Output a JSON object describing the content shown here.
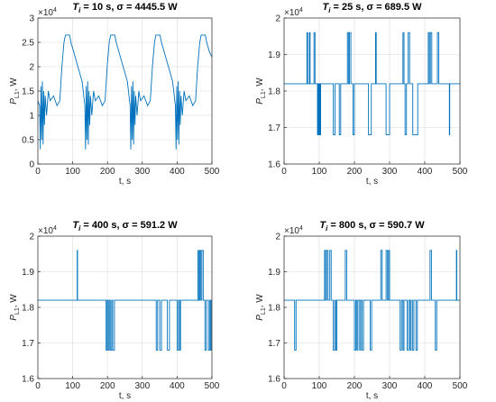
{
  "chart_data": [
    {
      "type": "line",
      "title": {
        "symbol": "T",
        "subscript": "i",
        "rest": " = 10 s,  σ = 4445.5 W"
      },
      "xlabel": "t, s",
      "ylabel": {
        "symbol": "P",
        "subscript": "L1",
        "unit": ", W"
      },
      "exponent_label": {
        "base": "×10",
        "power": "4"
      },
      "xlim": [
        0,
        500
      ],
      "xticks": [
        0,
        100,
        200,
        300,
        400,
        500
      ],
      "ylim": [
        0,
        3
      ],
      "yticks": [
        0,
        0.5,
        1,
        1.5,
        2,
        2.5,
        3
      ],
      "grid": true,
      "x": [
        0,
        5,
        7,
        9,
        11,
        13,
        15,
        17,
        19,
        21,
        25,
        30,
        35,
        45,
        55,
        63,
        69,
        75,
        79,
        91,
        95,
        103,
        111,
        119,
        127,
        135,
        137,
        139,
        141,
        143,
        145,
        147,
        149,
        151,
        155,
        160,
        165,
        175,
        185,
        193,
        199,
        205,
        209,
        221,
        225,
        233,
        241,
        249,
        257,
        265,
        267,
        269,
        271,
        273,
        275,
        277,
        279,
        281,
        285,
        290,
        295,
        305,
        315,
        323,
        329,
        335,
        339,
        351,
        355,
        363,
        371,
        379,
        387,
        395,
        397,
        399,
        401,
        403,
        405,
        407,
        409,
        411,
        415,
        420,
        425,
        435,
        445,
        453,
        459,
        465,
        469,
        481,
        485,
        493,
        500
      ],
      "series": [
        {
          "color": "#0072bd",
          "values": [
            1.3,
            1.2,
            0.3,
            1.6,
            0.5,
            1.7,
            0.4,
            1.5,
            0.8,
            1.4,
            1.0,
            1.5,
            1.3,
            1.4,
            1.2,
            1.3,
            2.0,
            2.5,
            2.65,
            2.65,
            2.5,
            2.3,
            2.1,
            1.9,
            1.7,
            1.2,
            0.3,
            1.6,
            0.5,
            1.7,
            0.4,
            1.5,
            0.8,
            1.4,
            1.0,
            1.5,
            1.3,
            1.4,
            1.2,
            1.3,
            2.0,
            2.5,
            2.65,
            2.65,
            2.5,
            2.3,
            2.1,
            1.9,
            1.7,
            1.2,
            0.3,
            1.6,
            0.5,
            1.7,
            0.4,
            1.5,
            0.8,
            1.4,
            1.0,
            1.5,
            1.3,
            1.4,
            1.2,
            1.3,
            2.0,
            2.5,
            2.65,
            2.65,
            2.5,
            2.3,
            2.1,
            1.9,
            1.7,
            1.2,
            0.3,
            1.6,
            0.5,
            1.7,
            0.4,
            1.5,
            0.8,
            1.4,
            1.0,
            1.5,
            1.3,
            1.4,
            1.2,
            1.3,
            2.0,
            2.5,
            2.65,
            2.65,
            2.5,
            2.3,
            2.2
          ]
        }
      ]
    },
    {
      "type": "line",
      "title": {
        "symbol": "T",
        "subscript": "i",
        "rest": " = 25 s,  σ = 689.5 W"
      },
      "xlabel": "t, s",
      "ylabel": {
        "symbol": "P",
        "subscript": "L1",
        "unit": ", W"
      },
      "exponent_label": {
        "base": "×10",
        "power": "4"
      },
      "xlim": [
        0,
        500
      ],
      "xticks": [
        0,
        100,
        200,
        300,
        400,
        500
      ],
      "ylim": [
        1.6,
        2
      ],
      "yticks": [
        1.6,
        1.7,
        1.8,
        1.9,
        2
      ],
      "grid": true,
      "x": [
        0,
        65,
        65,
        67,
        67,
        72,
        72,
        74,
        74,
        85,
        85,
        88,
        88,
        95,
        95,
        97,
        97,
        99,
        99,
        101,
        101,
        103,
        103,
        104,
        104,
        140,
        140,
        145,
        145,
        157,
        157,
        161,
        161,
        180,
        180,
        183,
        183,
        186,
        186,
        190,
        190,
        196,
        196,
        200,
        200,
        240,
        240,
        248,
        248,
        260,
        260,
        262,
        262,
        290,
        290,
        300,
        300,
        338,
        338,
        341,
        341,
        344,
        344,
        348,
        348,
        353,
        353,
        357,
        357,
        366,
        366,
        380,
        380,
        410,
        410,
        413,
        413,
        416,
        416,
        420,
        420,
        436,
        436,
        440,
        440,
        470,
        470,
        471,
        471,
        500
      ],
      "series": [
        {
          "color": "#0072bd",
          "values": [
            1.82,
            1.82,
            1.96,
            1.96,
            1.82,
            1.82,
            1.96,
            1.96,
            1.82,
            1.82,
            1.96,
            1.96,
            1.82,
            1.82,
            1.68,
            1.68,
            1.82,
            1.82,
            1.68,
            1.68,
            1.82,
            1.82,
            1.68,
            1.68,
            1.82,
            1.82,
            1.68,
            1.68,
            1.82,
            1.82,
            1.68,
            1.68,
            1.82,
            1.82,
            1.96,
            1.96,
            1.82,
            1.82,
            1.96,
            1.96,
            1.82,
            1.82,
            1.68,
            1.68,
            1.82,
            1.82,
            1.68,
            1.68,
            1.82,
            1.82,
            1.96,
            1.96,
            1.82,
            1.82,
            1.68,
            1.68,
            1.82,
            1.82,
            1.96,
            1.96,
            1.82,
            1.82,
            1.68,
            1.68,
            1.82,
            1.82,
            1.96,
            1.96,
            1.82,
            1.82,
            1.68,
            1.68,
            1.82,
            1.82,
            1.96,
            1.96,
            1.82,
            1.82,
            1.96,
            1.96,
            1.82,
            1.82,
            1.96,
            1.96,
            1.82,
            1.82,
            1.68,
            1.68,
            1.82,
            1.82
          ]
        }
      ]
    },
    {
      "type": "line",
      "title": {
        "symbol": "T",
        "subscript": "i",
        "rest": " = 400 s,  σ = 591.2 W"
      },
      "xlabel": "t, s",
      "ylabel": {
        "symbol": "P",
        "subscript": "L1",
        "unit": ", W"
      },
      "exponent_label": {
        "base": "×10",
        "power": "4"
      },
      "xlim": [
        0,
        500
      ],
      "xticks": [
        0,
        100,
        200,
        300,
        400,
        500
      ],
      "ylim": [
        1.6,
        2
      ],
      "yticks": [
        1.6,
        1.7,
        1.8,
        1.9,
        2
      ],
      "grid": true,
      "x": [
        0,
        113,
        113,
        114,
        114,
        196,
        196,
        199,
        199,
        202,
        202,
        205,
        205,
        208,
        208,
        212,
        212,
        215,
        215,
        220,
        220,
        340,
        340,
        344,
        344,
        350,
        350,
        355,
        355,
        372,
        372,
        378,
        378,
        400,
        400,
        404,
        404,
        407,
        407,
        410,
        410,
        460,
        460,
        462,
        462,
        465,
        465,
        468,
        468,
        471,
        471,
        475,
        475,
        480,
        480,
        484,
        484,
        490,
        490,
        494,
        494,
        496,
        496,
        499,
        499,
        500
      ],
      "series": [
        {
          "color": "#0072bd",
          "values": [
            1.82,
            1.82,
            1.96,
            1.96,
            1.82,
            1.82,
            1.68,
            1.68,
            1.82,
            1.82,
            1.68,
            1.68,
            1.82,
            1.82,
            1.68,
            1.68,
            1.82,
            1.82,
            1.68,
            1.68,
            1.82,
            1.82,
            1.68,
            1.68,
            1.82,
            1.82,
            1.68,
            1.68,
            1.82,
            1.82,
            1.68,
            1.68,
            1.82,
            1.82,
            1.68,
            1.68,
            1.82,
            1.82,
            1.68,
            1.68,
            1.82,
            1.82,
            1.96,
            1.96,
            1.82,
            1.82,
            1.96,
            1.96,
            1.82,
            1.82,
            1.96,
            1.96,
            1.82,
            1.82,
            1.68,
            1.68,
            1.82,
            1.82,
            1.68,
            1.68,
            1.82,
            1.82,
            1.68,
            1.68,
            1.82,
            1.82
          ]
        }
      ]
    },
    {
      "type": "line",
      "title": {
        "symbol": "T",
        "subscript": "i",
        "rest": " = 800 s,  σ = 590.7 W"
      },
      "xlabel": "t, s",
      "ylabel": {
        "symbol": "P",
        "subscript": "L1",
        "unit": ", W"
      },
      "exponent_label": {
        "base": "×10",
        "power": "4"
      },
      "xlim": [
        0,
        500
      ],
      "xticks": [
        0,
        100,
        200,
        300,
        400,
        500
      ],
      "ylim": [
        1.6,
        2
      ],
      "yticks": [
        1.6,
        1.7,
        1.8,
        1.9,
        2
      ],
      "grid": true,
      "x": [
        0,
        30,
        30,
        34,
        34,
        115,
        115,
        118,
        118,
        121,
        121,
        125,
        125,
        130,
        130,
        134,
        134,
        140,
        140,
        144,
        144,
        147,
        147,
        150,
        150,
        174,
        174,
        178,
        178,
        200,
        200,
        204,
        204,
        207,
        207,
        210,
        210,
        215,
        215,
        218,
        218,
        222,
        222,
        226,
        226,
        245,
        245,
        249,
        249,
        275,
        275,
        279,
        279,
        290,
        290,
        294,
        294,
        297,
        297,
        300,
        300,
        330,
        330,
        334,
        334,
        338,
        338,
        341,
        341,
        350,
        350,
        354,
        354,
        358,
        358,
        361,
        361,
        365,
        365,
        369,
        369,
        375,
        375,
        379,
        379,
        415,
        415,
        419,
        419,
        430,
        430,
        434,
        434,
        490,
        490,
        491,
        491,
        500
      ],
      "series": [
        {
          "color": "#0072bd",
          "values": [
            1.82,
            1.82,
            1.68,
            1.68,
            1.82,
            1.82,
            1.96,
            1.96,
            1.82,
            1.82,
            1.96,
            1.96,
            1.82,
            1.82,
            1.96,
            1.96,
            1.82,
            1.82,
            1.68,
            1.68,
            1.82,
            1.82,
            1.68,
            1.68,
            1.82,
            1.82,
            1.96,
            1.96,
            1.82,
            1.82,
            1.68,
            1.68,
            1.82,
            1.82,
            1.68,
            1.68,
            1.82,
            1.82,
            1.68,
            1.68,
            1.82,
            1.82,
            1.68,
            1.68,
            1.82,
            1.82,
            1.68,
            1.68,
            1.82,
            1.82,
            1.96,
            1.96,
            1.82,
            1.82,
            1.96,
            1.96,
            1.82,
            1.82,
            1.96,
            1.96,
            1.82,
            1.82,
            1.68,
            1.68,
            1.82,
            1.82,
            1.68,
            1.68,
            1.82,
            1.82,
            1.68,
            1.68,
            1.82,
            1.82,
            1.68,
            1.68,
            1.82,
            1.82,
            1.68,
            1.68,
            1.82,
            1.82,
            1.68,
            1.68,
            1.82,
            1.82,
            1.96,
            1.96,
            1.82,
            1.82,
            1.68,
            1.68,
            1.82,
            1.82,
            1.96,
            1.96,
            1.82,
            1.82
          ]
        }
      ]
    }
  ]
}
